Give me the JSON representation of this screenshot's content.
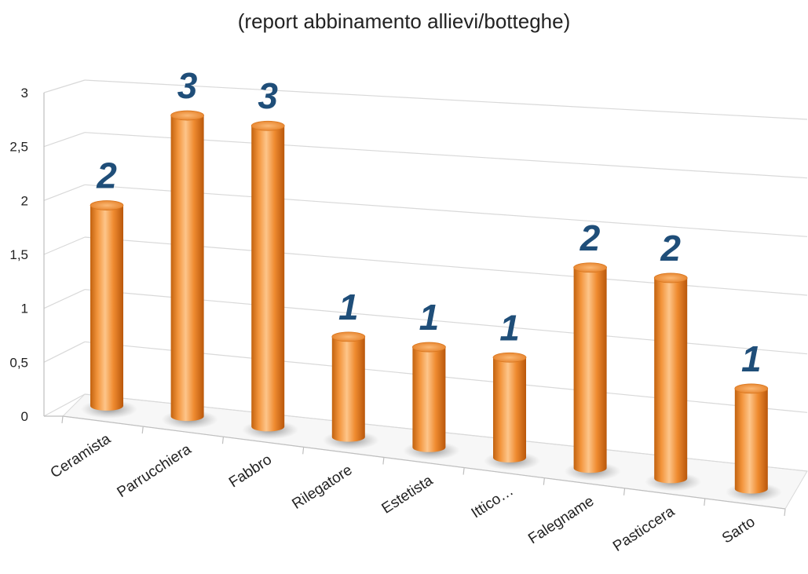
{
  "chart_data": {
    "type": "bar",
    "title": "(report abbinamento allievi/botteghe)",
    "xlabel": "",
    "ylabel": "",
    "categories": [
      "Ceramista",
      "Parrucchiera",
      "Fabbro",
      "Rilegatore",
      "Estetista",
      "Ittico…",
      "Falegname",
      "Pasticcera",
      "Sarto"
    ],
    "series": [
      {
        "values": [
          2,
          3,
          3,
          1,
          1,
          1,
          2,
          2,
          1
        ]
      }
    ],
    "data_labels": [
      "2",
      "3",
      "3",
      "1",
      "1",
      "1",
      "2",
      "2",
      "1"
    ],
    "ylim": [
      0,
      3
    ],
    "yticks": [
      "0",
      "0,5",
      "1",
      "1,5",
      "2",
      "2,5",
      "3"
    ],
    "grid": true,
    "legend": "none",
    "style": "3d-cylinder",
    "bar_color": "#f0923c"
  }
}
